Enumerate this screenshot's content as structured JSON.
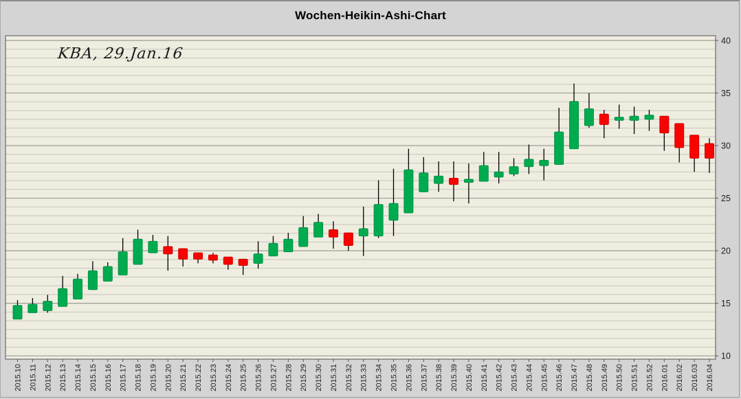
{
  "title": "Wochen-Heikin-Ashi-Chart",
  "annotation": "KBA, 29.Jan.16",
  "colors": {
    "up_candle": "#00AB50",
    "up_candle_edge": "#009245",
    "down_candle": "#F70300",
    "down_candle_edge": "#D40200",
    "wick": "#000000",
    "plot_background": "#EFEDE0",
    "outer_background": "#D4D4D4",
    "grid_minor": "#C7C6BC",
    "grid_major": "#9E9D95",
    "plot_border": "#6B6B6B",
    "tick": "#555555",
    "label_text": "#1f1f1f"
  },
  "y_axis": {
    "min": 10,
    "max": 40,
    "major_step": 5,
    "tick_labels": [
      "40",
      "35",
      "30",
      "25",
      "20",
      "15",
      "10"
    ],
    "side": "right"
  },
  "x_axis": {
    "label_rotation_degrees": 90
  },
  "chart_data": {
    "type": "candlestick",
    "subtype": "weekly heikin-ashi",
    "title": "Wochen-Heikin-Ashi-Chart",
    "annotation": "KBA, 29.Jan.16",
    "ylim": [
      10,
      40
    ],
    "grid": "horizontal-only",
    "legend": "none",
    "categories": [
      "2015.10",
      "2015.11",
      "2015.12",
      "2015.13",
      "2015.14",
      "2015.15",
      "2015.16",
      "2015.17",
      "2015.18",
      "2015.19",
      "2015.20",
      "2015.21",
      "2015.22",
      "2015.23",
      "2015.24",
      "2015.25",
      "2015.26",
      "2015.27",
      "2015.28",
      "2015.29",
      "2015.30",
      "2015.31",
      "2015.32",
      "2015.33",
      "2015.34",
      "2015.35",
      "2015.36",
      "2015.37",
      "2015.38",
      "2015.39",
      "2015.40",
      "2015.41",
      "2015.42",
      "2015.43",
      "2015.44",
      "2015.45",
      "2015.46",
      "2015.47",
      "2015.48",
      "2015.49",
      "2015.50",
      "2015.51",
      "2015.52",
      "2016.01",
      "2016.02",
      "2016.03",
      "2016.04"
    ],
    "candles": [
      {
        "week": "2015.10",
        "open": 13.5,
        "high": 15.3,
        "low": 13.5,
        "close": 14.8
      },
      {
        "week": "2015.11",
        "open": 14.1,
        "high": 15.5,
        "low": 14.1,
        "close": 14.9
      },
      {
        "week": "2015.12",
        "open": 14.3,
        "high": 15.8,
        "low": 14.1,
        "close": 15.2
      },
      {
        "week": "2015.13",
        "open": 14.7,
        "high": 17.6,
        "low": 14.7,
        "close": 16.4
      },
      {
        "week": "2015.14",
        "open": 15.4,
        "high": 17.8,
        "low": 15.4,
        "close": 17.3
      },
      {
        "week": "2015.15",
        "open": 16.3,
        "high": 19.0,
        "low": 16.3,
        "close": 18.1
      },
      {
        "week": "2015.16",
        "open": 17.1,
        "high": 18.9,
        "low": 17.1,
        "close": 18.5
      },
      {
        "week": "2015.17",
        "open": 17.7,
        "high": 21.2,
        "low": 17.7,
        "close": 19.9
      },
      {
        "week": "2015.18",
        "open": 18.7,
        "high": 22.0,
        "low": 18.7,
        "close": 21.1
      },
      {
        "week": "2015.19",
        "open": 19.8,
        "high": 21.5,
        "low": 19.8,
        "close": 20.9
      },
      {
        "week": "2015.20",
        "open": 20.4,
        "high": 21.4,
        "low": 18.1,
        "close": 19.7
      },
      {
        "week": "2015.21",
        "open": 20.2,
        "high": 20.2,
        "low": 18.5,
        "close": 19.2
      },
      {
        "week": "2015.22",
        "open": 19.8,
        "high": 19.8,
        "low": 18.8,
        "close": 19.2
      },
      {
        "week": "2015.23",
        "open": 19.6,
        "high": 19.8,
        "low": 18.8,
        "close": 19.1
      },
      {
        "week": "2015.24",
        "open": 19.4,
        "high": 19.4,
        "low": 18.2,
        "close": 18.7
      },
      {
        "week": "2015.25",
        "open": 19.2,
        "high": 19.2,
        "low": 17.7,
        "close": 18.6
      },
      {
        "week": "2015.26",
        "open": 18.8,
        "high": 20.9,
        "low": 18.3,
        "close": 19.7
      },
      {
        "week": "2015.27",
        "open": 19.5,
        "high": 21.4,
        "low": 19.5,
        "close": 20.7
      },
      {
        "week": "2015.28",
        "open": 19.9,
        "high": 21.7,
        "low": 19.9,
        "close": 21.1
      },
      {
        "week": "2015.29",
        "open": 20.4,
        "high": 23.3,
        "low": 20.4,
        "close": 22.2
      },
      {
        "week": "2015.30",
        "open": 21.3,
        "high": 23.5,
        "low": 21.3,
        "close": 22.7
      },
      {
        "week": "2015.31",
        "open": 22.0,
        "high": 22.8,
        "low": 20.2,
        "close": 21.3
      },
      {
        "week": "2015.32",
        "open": 21.7,
        "high": 21.7,
        "low": 20.0,
        "close": 20.5
      },
      {
        "week": "2015.33",
        "open": 21.4,
        "high": 24.2,
        "low": 19.5,
        "close": 22.1
      },
      {
        "week": "2015.34",
        "open": 21.4,
        "high": 26.7,
        "low": 21.2,
        "close": 24.4
      },
      {
        "week": "2015.35",
        "open": 22.9,
        "high": 27.8,
        "low": 21.4,
        "close": 24.5
      },
      {
        "week": "2015.36",
        "open": 23.6,
        "high": 29.7,
        "low": 23.6,
        "close": 27.7
      },
      {
        "week": "2015.37",
        "open": 25.6,
        "high": 28.9,
        "low": 25.6,
        "close": 27.4
      },
      {
        "week": "2015.38",
        "open": 26.4,
        "high": 28.5,
        "low": 25.6,
        "close": 27.1
      },
      {
        "week": "2015.39",
        "open": 26.9,
        "high": 28.5,
        "low": 24.7,
        "close": 26.3
      },
      {
        "week": "2015.40",
        "open": 26.5,
        "high": 28.3,
        "low": 24.5,
        "close": 26.8
      },
      {
        "week": "2015.41",
        "open": 26.6,
        "high": 29.4,
        "low": 26.6,
        "close": 28.1
      },
      {
        "week": "2015.42",
        "open": 27.0,
        "high": 29.4,
        "low": 26.4,
        "close": 27.5
      },
      {
        "week": "2015.43",
        "open": 27.3,
        "high": 28.8,
        "low": 27.1,
        "close": 28.0
      },
      {
        "week": "2015.44",
        "open": 28.0,
        "high": 30.1,
        "low": 27.3,
        "close": 28.7
      },
      {
        "week": "2015.45",
        "open": 28.1,
        "high": 29.7,
        "low": 26.7,
        "close": 28.6
      },
      {
        "week": "2015.46",
        "open": 28.2,
        "high": 33.6,
        "low": 28.2,
        "close": 31.3
      },
      {
        "week": "2015.47",
        "open": 29.7,
        "high": 35.9,
        "low": 29.7,
        "close": 34.2
      },
      {
        "week": "2015.48",
        "open": 31.9,
        "high": 35.0,
        "low": 31.7,
        "close": 33.5
      },
      {
        "week": "2015.49",
        "open": 33.0,
        "high": 33.4,
        "low": 30.7,
        "close": 32.0
      },
      {
        "week": "2015.50",
        "open": 32.4,
        "high": 33.9,
        "low": 31.6,
        "close": 32.7
      },
      {
        "week": "2015.51",
        "open": 32.4,
        "high": 33.7,
        "low": 31.1,
        "close": 32.8
      },
      {
        "week": "2015.52",
        "open": 32.5,
        "high": 33.4,
        "low": 31.4,
        "close": 32.9
      },
      {
        "week": "2016.01",
        "open": 32.8,
        "high": 32.8,
        "low": 29.5,
        "close": 31.2
      },
      {
        "week": "2016.02",
        "open": 32.1,
        "high": 32.1,
        "low": 28.4,
        "close": 29.8
      },
      {
        "week": "2016.03",
        "open": 31.0,
        "high": 31.0,
        "low": 27.5,
        "close": 28.8
      },
      {
        "week": "2016.04",
        "open": 30.2,
        "high": 30.7,
        "low": 27.4,
        "close": 28.8
      }
    ]
  }
}
